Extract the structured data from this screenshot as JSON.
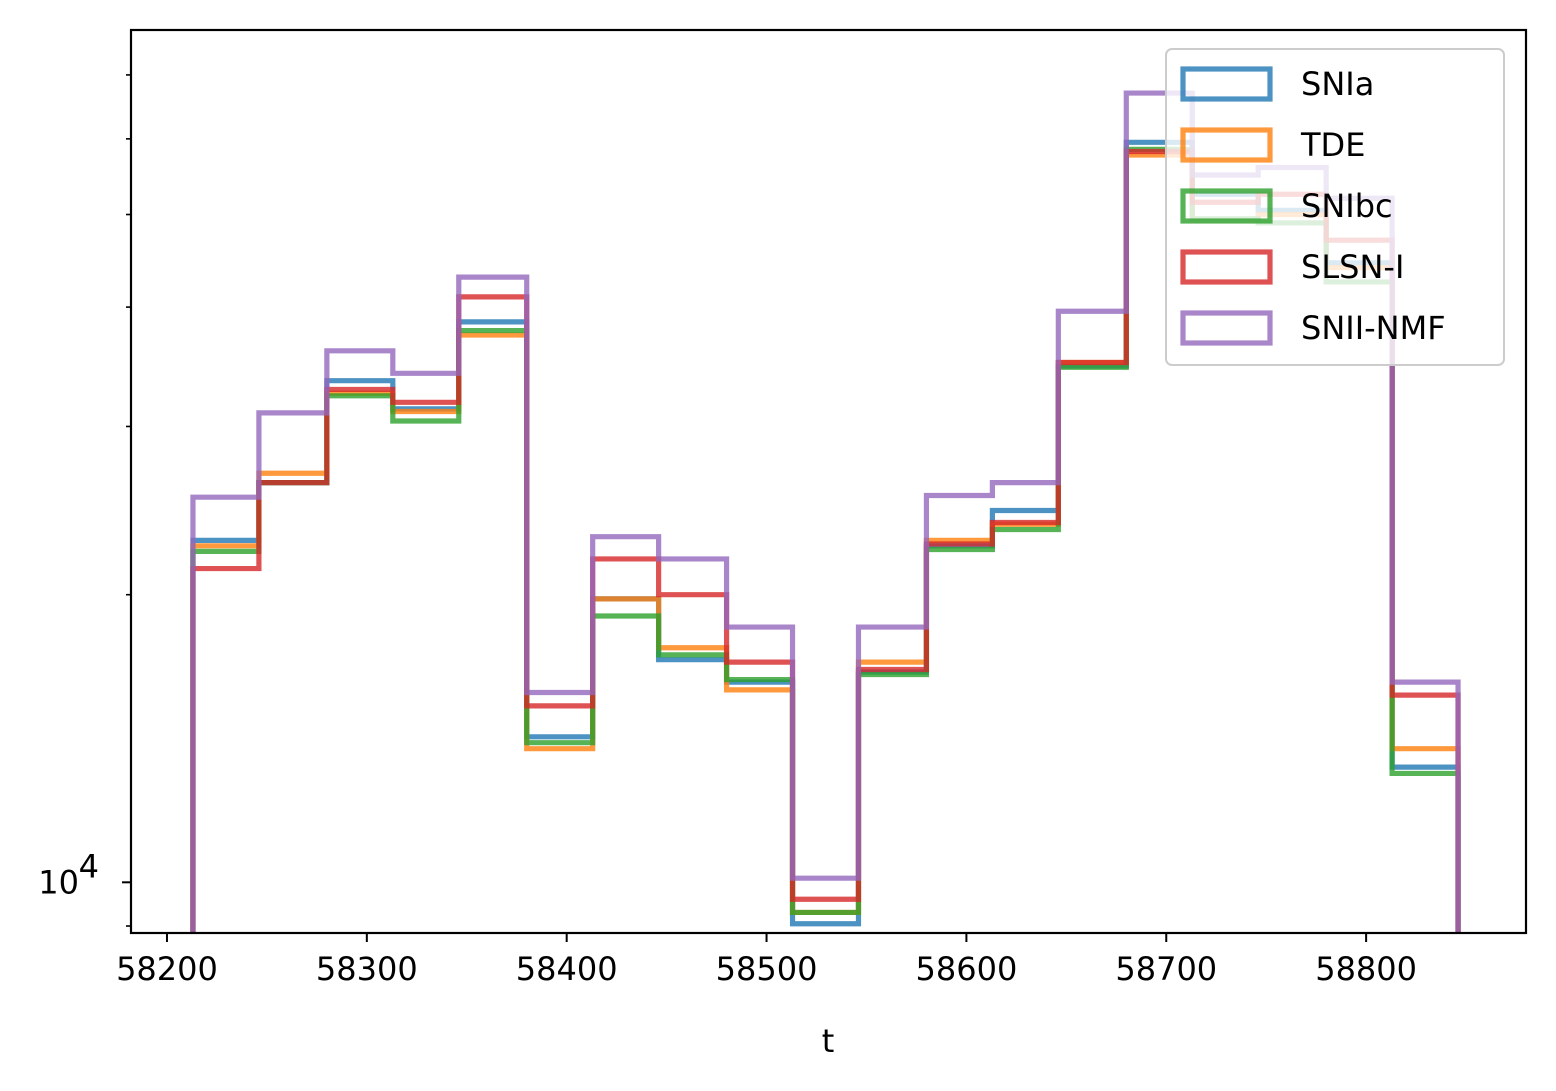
{
  "chart_data": {
    "type": "histogram-step",
    "title": "",
    "xlabel": "t",
    "ylabel": "",
    "yscale": "log",
    "xlim": [
      58182,
      58880
    ],
    "ylim": [
      8850,
      78000
    ],
    "xticks": [
      58200,
      58300,
      58400,
      58500,
      58600,
      58700,
      58800
    ],
    "xtick_labels": [
      "58200",
      "58300",
      "58400",
      "58500",
      "58600",
      "58700",
      "58800"
    ],
    "ytick_major": 10000,
    "ytick_major_label_base": "10",
    "ytick_major_label_exp": "4",
    "ytick_minor": [
      9000,
      20000,
      30000,
      40000,
      50000,
      60000,
      70000
    ],
    "grid": false,
    "legend_position": "upper right",
    "bin_edges": [
      58213,
      58246,
      58280,
      58313,
      58346,
      58380,
      58413,
      58446,
      58480,
      58513,
      58546,
      58580,
      58613,
      58646,
      58680,
      58713,
      58746,
      58780,
      58813,
      58846
    ],
    "series": [
      {
        "name": "SNIa",
        "color": "#1f77b4",
        "values": [
          22800,
          26200,
          33500,
          31300,
          38600,
          14200,
          19800,
          17100,
          16200,
          9050,
          16600,
          22500,
          24500,
          34700,
          59500,
          52500,
          50500,
          44500,
          13200
        ]
      },
      {
        "name": "TDE",
        "color": "#ff7f0e",
        "values": [
          22500,
          26800,
          32500,
          31100,
          37400,
          13800,
          19800,
          17600,
          15900,
          9300,
          17000,
          22800,
          23700,
          35000,
          57700,
          49300,
          50000,
          44000,
          13800
        ]
      },
      {
        "name": "SNIbc",
        "color": "#2ca02c",
        "values": [
          22200,
          26200,
          32300,
          30400,
          37800,
          14000,
          19000,
          17300,
          16300,
          9300,
          16500,
          22300,
          23400,
          34600,
          58500,
          49500,
          49000,
          42500,
          13000
        ]
      },
      {
        "name": "SLSN-I",
        "color": "#d62728",
        "values": [
          21300,
          26200,
          32800,
          31800,
          41000,
          15300,
          21800,
          20000,
          17000,
          9600,
          16700,
          22600,
          23800,
          35000,
          58200,
          51500,
          52500,
          47000,
          15700
        ]
      },
      {
        "name": "SNII-NMF",
        "color": "#9467bd",
        "values": [
          25300,
          31000,
          36000,
          34100,
          43000,
          15800,
          23000,
          21800,
          18500,
          10100,
          18500,
          25400,
          26200,
          39600,
          67000,
          55000,
          56000,
          52000,
          16200
        ]
      }
    ]
  }
}
